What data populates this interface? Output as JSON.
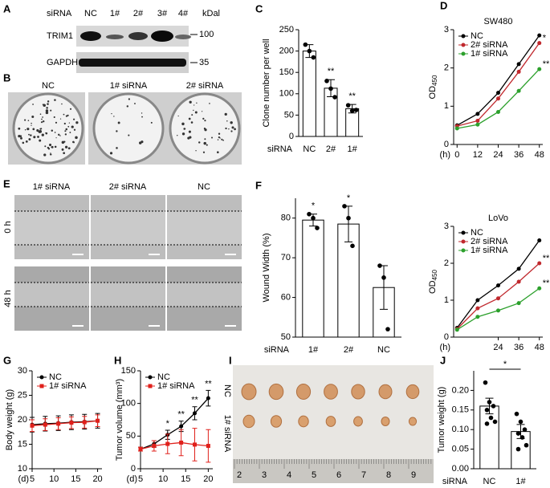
{
  "panel_labels": [
    "A",
    "B",
    "C",
    "D",
    "E",
    "F",
    "G",
    "H",
    "I",
    "J"
  ],
  "blot": {
    "row_label": "siRNA",
    "lanes": [
      "NC",
      "1#",
      "2#",
      "3#",
      "4#"
    ],
    "unit": "kDal",
    "proteins": [
      "TRIM1",
      "GAPDH"
    ],
    "markers": [
      "100",
      "35"
    ]
  },
  "colony": {
    "labels": [
      "NC",
      "1# siRNA",
      "2# siRNA"
    ]
  },
  "wound": {
    "columns": [
      "1# siRNA",
      "2# siRNA",
      "NC"
    ],
    "rows": [
      "0 h",
      "48 h"
    ]
  },
  "tumor": {
    "rows": [
      "NC",
      "1# siRNA"
    ],
    "ruler": [
      "2",
      "3",
      "4",
      "5",
      "6",
      "7",
      "8",
      "9"
    ]
  },
  "chart_data": [
    {
      "type": "bar",
      "ylabel": "Clone number per well",
      "xprefix": "siRNA",
      "categories": [
        "NC",
        "2#",
        "1#"
      ],
      "values": [
        200,
        113,
        65
      ],
      "errors": [
        15,
        20,
        10
      ],
      "points": [
        [
          215,
          200,
          185
        ],
        [
          130,
          112,
          92
        ],
        [
          73,
          60,
          62
        ]
      ],
      "color": "#ffffff",
      "ylim": [
        0,
        250
      ],
      "yticks": [
        0,
        50,
        100,
        150,
        200,
        250
      ],
      "annotations": [
        {
          "text": "**",
          "category": 1
        },
        {
          "text": "**",
          "category": 2
        }
      ]
    },
    {
      "type": "line",
      "title": "SW480",
      "ylabel": "OD",
      "ylabel_sub": "450",
      "xlabel": "(h)",
      "x": [
        0,
        12,
        24,
        36,
        48
      ],
      "xlim": [
        -2,
        50
      ],
      "xticks": [
        0,
        12,
        24,
        36,
        48
      ],
      "ylim": [
        0,
        3
      ],
      "yticks": [
        0,
        1,
        2,
        3
      ],
      "legend": "upper left",
      "series": [
        {
          "name": "NC",
          "color": "#000000",
          "marker": "circle",
          "values": [
            0.5,
            0.8,
            1.35,
            2.1,
            2.85
          ]
        },
        {
          "name": "2# siRNA",
          "color": "#c0282d",
          "marker": "circle",
          "values": [
            0.48,
            0.62,
            1.2,
            1.9,
            2.65
          ]
        },
        {
          "name": "1# siRNA",
          "color": "#2ca02c",
          "marker": "circle",
          "values": [
            0.42,
            0.52,
            0.85,
            1.4,
            1.97
          ]
        }
      ],
      "annotations": [
        {
          "text": "*",
          "series": 1
        },
        {
          "text": "**",
          "series": 2
        }
      ]
    },
    {
      "type": "bar",
      "ylabel": "Wound Width (%)",
      "xprefix": "siRNA",
      "categories": [
        "1#",
        "2#",
        "NC"
      ],
      "values": [
        79.5,
        78.5,
        62.5
      ],
      "errors": [
        1.5,
        4.5,
        5.5
      ],
      "points": [
        [
          81,
          80,
          77.5
        ],
        [
          83,
          80,
          73
        ],
        [
          68,
          65,
          52
        ]
      ],
      "color": "#ffffff",
      "ylim": [
        50,
        85
      ],
      "yticks": [
        50,
        60,
        70,
        80
      ],
      "annotations": [
        {
          "text": "*",
          "category": 0
        },
        {
          "text": "*",
          "category": 1
        }
      ]
    },
    {
      "type": "line",
      "title": "LoVo",
      "ylabel": "OD",
      "ylabel_sub": "450",
      "xlabel": "(h)",
      "x": [
        0,
        12,
        24,
        36,
        48
      ],
      "xlim": [
        -2,
        50
      ],
      "xticks": [
        24,
        36,
        48
      ],
      "ylim": [
        0,
        3
      ],
      "yticks": [
        0,
        1,
        2,
        3
      ],
      "legend": "upper left",
      "series": [
        {
          "name": "NC",
          "color": "#000000",
          "marker": "circle",
          "values": [
            0.25,
            1.0,
            1.4,
            1.85,
            2.62
          ]
        },
        {
          "name": "2# siRNA",
          "color": "#c0282d",
          "marker": "circle",
          "values": [
            0.22,
            0.78,
            1.05,
            1.5,
            2.0
          ]
        },
        {
          "name": "1# siRNA",
          "color": "#2ca02c",
          "marker": "circle",
          "values": [
            0.2,
            0.55,
            0.72,
            0.92,
            1.32
          ]
        }
      ],
      "annotations": [
        {
          "text": "**",
          "series": 1
        },
        {
          "text": "**",
          "series": 2
        }
      ]
    },
    {
      "type": "line",
      "ylabel": "Body weight (g)",
      "xlabel": "(d)",
      "x": [
        5,
        8,
        11,
        14,
        17,
        20
      ],
      "xlim": [
        5,
        21
      ],
      "xticks": [
        5,
        10,
        15,
        20
      ],
      "ylim": [
        10,
        30
      ],
      "yticks": [
        10,
        15,
        20,
        25,
        30
      ],
      "legend": "upper left",
      "series": [
        {
          "name": "NC",
          "color": "#000000",
          "marker": "circle",
          "values": [
            19,
            19.2,
            19.3,
            19.5,
            19.6,
            19.8
          ],
          "errors": [
            1.5,
            1.5,
            1.5,
            1.5,
            1.5,
            1.5
          ]
        },
        {
          "name": "1# siRNA",
          "color": "#e0201b",
          "marker": "square",
          "values": [
            18.8,
            19,
            19.2,
            19.4,
            19.5,
            19.8
          ],
          "errors": [
            1.2,
            1.2,
            1.2,
            1.2,
            1.2,
            1.2
          ]
        }
      ]
    },
    {
      "type": "line",
      "ylabel": "Tumor volume (mm³)",
      "xlabel": "(d)",
      "x": [
        5,
        8,
        11,
        14,
        17,
        20
      ],
      "xlim": [
        5,
        21
      ],
      "xticks": [
        5,
        10,
        15,
        20
      ],
      "ylim": [
        0,
        150
      ],
      "yticks": [
        0,
        50,
        100,
        150
      ],
      "legend": "upper left",
      "series": [
        {
          "name": "NC",
          "color": "#000000",
          "marker": "circle",
          "values": [
            30,
            38,
            52,
            65,
            85,
            108
          ],
          "errors": [
            3,
            5,
            7,
            8,
            10,
            12
          ]
        },
        {
          "name": "1# siRNA",
          "color": "#e0201b",
          "marker": "square",
          "values": [
            30,
            35,
            38,
            40,
            37,
            35
          ],
          "errors": [
            3,
            8,
            15,
            20,
            25,
            25
          ]
        }
      ],
      "annotations": [
        {
          "text": "*",
          "x": 11
        },
        {
          "text": "**",
          "x": 14
        },
        {
          "text": "**",
          "x": 17
        },
        {
          "text": "**",
          "x": 20
        }
      ]
    },
    {
      "type": "bar",
      "ylabel": "Tumor weight (g)",
      "xprefix": "siRNA",
      "categories": [
        "NC",
        "1#"
      ],
      "values": [
        0.16,
        0.095
      ],
      "errors": [
        0.02,
        0.018
      ],
      "points": [
        [
          0.22,
          0.17,
          0.16,
          0.15,
          0.13,
          0.12,
          0.115
        ],
        [
          0.14,
          0.12,
          0.1,
          0.09,
          0.08,
          0.06,
          0.05
        ]
      ],
      "color": "#ffffff",
      "ylim": [
        0,
        0.25
      ],
      "yticks": [
        {
          "value": 0,
          "label": "0.00"
        },
        {
          "value": 0.05,
          "label": "0.05"
        },
        {
          "value": 0.1,
          "label": "0.10"
        },
        {
          "value": 0.15,
          "label": "0.15"
        },
        {
          "value": 0.2,
          "label": "0.20"
        }
      ],
      "annotations": [
        {
          "text": "*",
          "bracket": [
            0,
            1
          ]
        }
      ]
    }
  ]
}
